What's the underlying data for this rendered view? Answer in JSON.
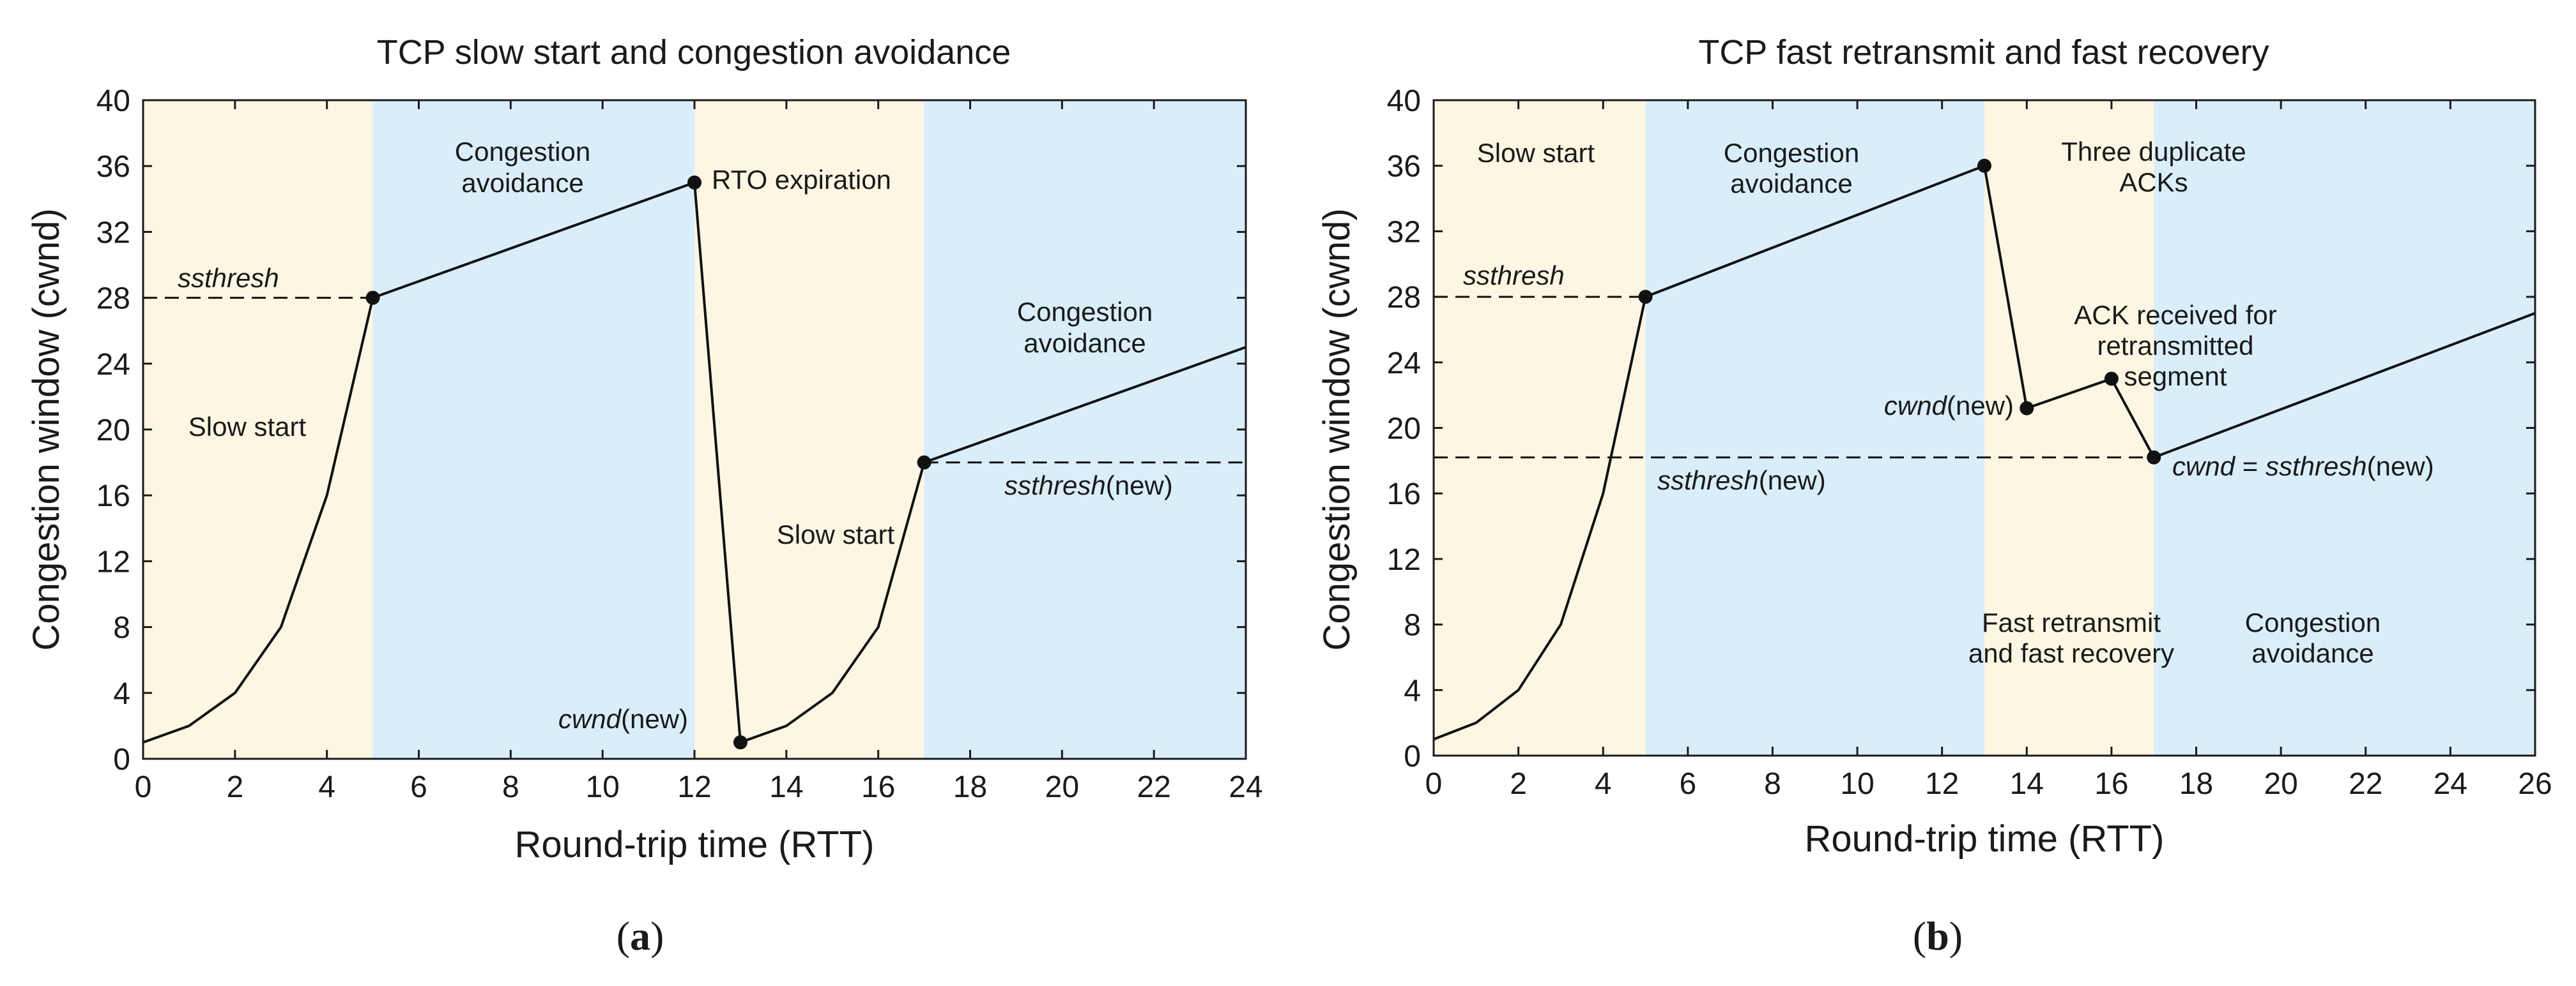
{
  "colors": {
    "slow_start_band": "#fcf6e2",
    "avoidance_band": "#d9eefa",
    "fast_recovery_band": "#fcf6e2",
    "line": "#111111"
  },
  "chart_data": [
    {
      "type": "line",
      "panel_label": "a",
      "title": "TCP slow start and congestion avoidance",
      "xlabel": "Round-trip time (RTT)",
      "ylabel": "Congestion window (cwnd)",
      "xlim": [
        0,
        24
      ],
      "ylim": [
        0,
        40
      ],
      "xticks": [
        0,
        2,
        4,
        6,
        8,
        10,
        12,
        14,
        16,
        18,
        20,
        22,
        24
      ],
      "yticks": [
        0,
        4,
        8,
        12,
        16,
        20,
        24,
        28,
        32,
        36,
        40
      ],
      "bands": [
        {
          "phase": "slow_start",
          "x0": 0,
          "x1": 5
        },
        {
          "phase": "avoidance",
          "x0": 5,
          "x1": 12
        },
        {
          "phase": "slow_start",
          "x0": 12,
          "x1": 17
        },
        {
          "phase": "avoidance",
          "x0": 17,
          "x1": 24
        }
      ],
      "series": [
        {
          "name": "cwnd",
          "x": [
            0,
            1,
            2,
            3,
            4,
            5,
            12,
            13,
            14,
            15,
            16,
            17,
            24
          ],
          "y": [
            1,
            2,
            4,
            8,
            16,
            28,
            35,
            1,
            2,
            4,
            8,
            18,
            25
          ]
        }
      ],
      "markers": [
        {
          "x": 5,
          "y": 28
        },
        {
          "x": 12,
          "y": 35
        },
        {
          "x": 13,
          "y": 1
        },
        {
          "x": 17,
          "y": 18
        }
      ],
      "thresholds": [
        {
          "y": 28,
          "x0": 0,
          "x1": 5
        },
        {
          "y": 18,
          "x0": 17,
          "x1": 24
        }
      ],
      "labels": {
        "slow_start_1": "Slow start",
        "avoidance_1_a": "Congestion",
        "avoidance_1_b": "avoidance",
        "rto": "RTO expiration",
        "slow_start_2": "Slow start",
        "avoidance_2_a": "Congestion",
        "avoidance_2_b": "avoidance",
        "ssthresh": "ssthresh",
        "ssthresh_new_it": "ssthresh",
        "ssthresh_new_suffix": "(new)",
        "cwnd_new_it": "cwnd",
        "cwnd_new_suffix": "(new)"
      }
    },
    {
      "type": "line",
      "panel_label": "b",
      "title": "TCP fast retransmit and fast recovery",
      "xlabel": "Round-trip time (RTT)",
      "ylabel": "Congestion window (cwnd)",
      "xlim": [
        0,
        26
      ],
      "ylim": [
        0,
        40
      ],
      "xticks": [
        0,
        2,
        4,
        6,
        8,
        10,
        12,
        14,
        16,
        18,
        20,
        22,
        24,
        26
      ],
      "yticks": [
        0,
        4,
        8,
        12,
        16,
        20,
        24,
        28,
        32,
        36,
        40
      ],
      "bands": [
        {
          "phase": "slow_start",
          "x0": 0,
          "x1": 5
        },
        {
          "phase": "avoidance",
          "x0": 5,
          "x1": 13
        },
        {
          "phase": "fast_recovery",
          "x0": 13,
          "x1": 17
        },
        {
          "phase": "avoidance",
          "x0": 17,
          "x1": 26
        }
      ],
      "series": [
        {
          "name": "cwnd",
          "x": [
            0,
            1,
            2,
            3,
            4,
            5,
            13,
            14,
            16,
            17,
            26
          ],
          "y": [
            1,
            2,
            4,
            8,
            16,
            28,
            36,
            21.2,
            23,
            18.2,
            27
          ]
        }
      ],
      "markers": [
        {
          "x": 5,
          "y": 28
        },
        {
          "x": 13,
          "y": 36
        },
        {
          "x": 14,
          "y": 21.2
        },
        {
          "x": 16,
          "y": 23
        },
        {
          "x": 17,
          "y": 18.2
        }
      ],
      "thresholds": [
        {
          "y": 28,
          "x0": 0,
          "x1": 5
        },
        {
          "y": 18.2,
          "x0": 0,
          "x1": 17
        }
      ],
      "labels": {
        "slow_start": "Slow start",
        "avoidance_1_a": "Congestion",
        "avoidance_1_b": "avoidance",
        "dup_acks_a": "Three duplicate",
        "dup_acks_b": "ACKs",
        "ack_received_a": "ACK received for",
        "ack_received_b": "retransmitted",
        "ack_received_c": "segment",
        "fast_recovery_a": "Fast retransmit",
        "fast_recovery_b": "and fast recovery",
        "avoidance_2_a": "Congestion",
        "avoidance_2_b": "avoidance",
        "ssthresh": "ssthresh",
        "ssthresh_new_it": "ssthresh",
        "ssthresh_new_suffix": "(new)",
        "cwnd_new_it": "cwnd",
        "cwnd_new_suffix": "(new)",
        "cwnd_eq_it1": "cwnd",
        "cwnd_eq_op": " = ",
        "cwnd_eq_it2": "ssthresh",
        "cwnd_eq_suffix": "(new)"
      }
    }
  ]
}
